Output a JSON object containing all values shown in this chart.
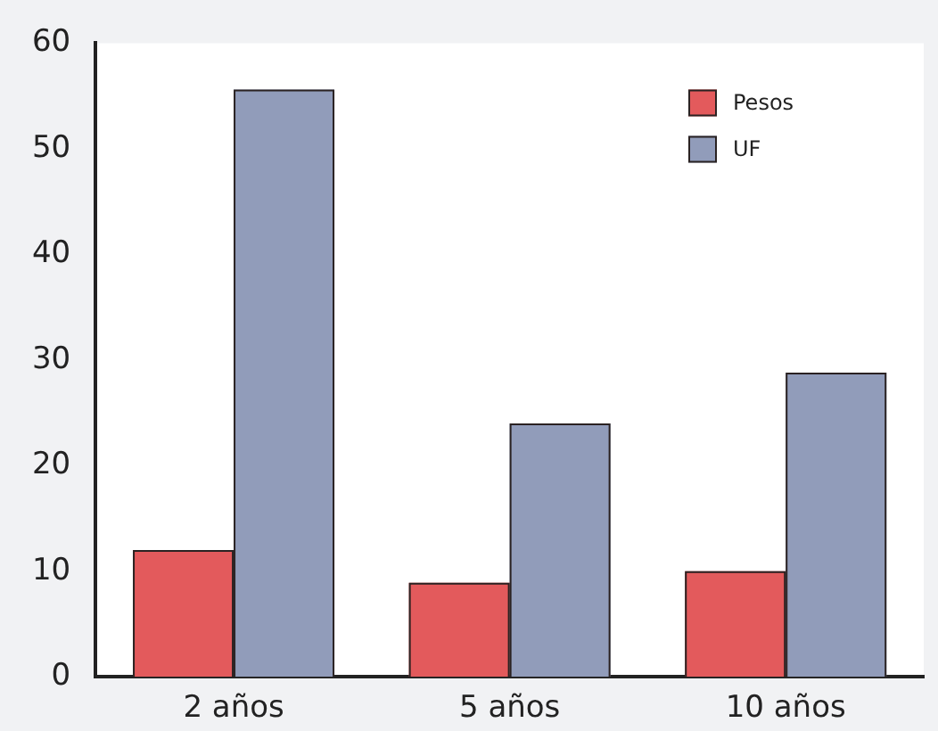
{
  "chart_data": {
    "type": "bar",
    "categories": [
      "2 años",
      "5 años",
      "10 años"
    ],
    "series": [
      {
        "name": "Pesos",
        "color": "#e35a5c",
        "values": [
          12.0,
          8.9,
          10.0
        ]
      },
      {
        "name": "UF",
        "color": "#919cba",
        "values": [
          55.6,
          24.0,
          28.8
        ]
      }
    ],
    "ylim": [
      0,
      60
    ],
    "yticks": [
      0,
      10,
      20,
      30,
      40,
      50,
      60
    ],
    "grid": false,
    "legend": "top right"
  }
}
